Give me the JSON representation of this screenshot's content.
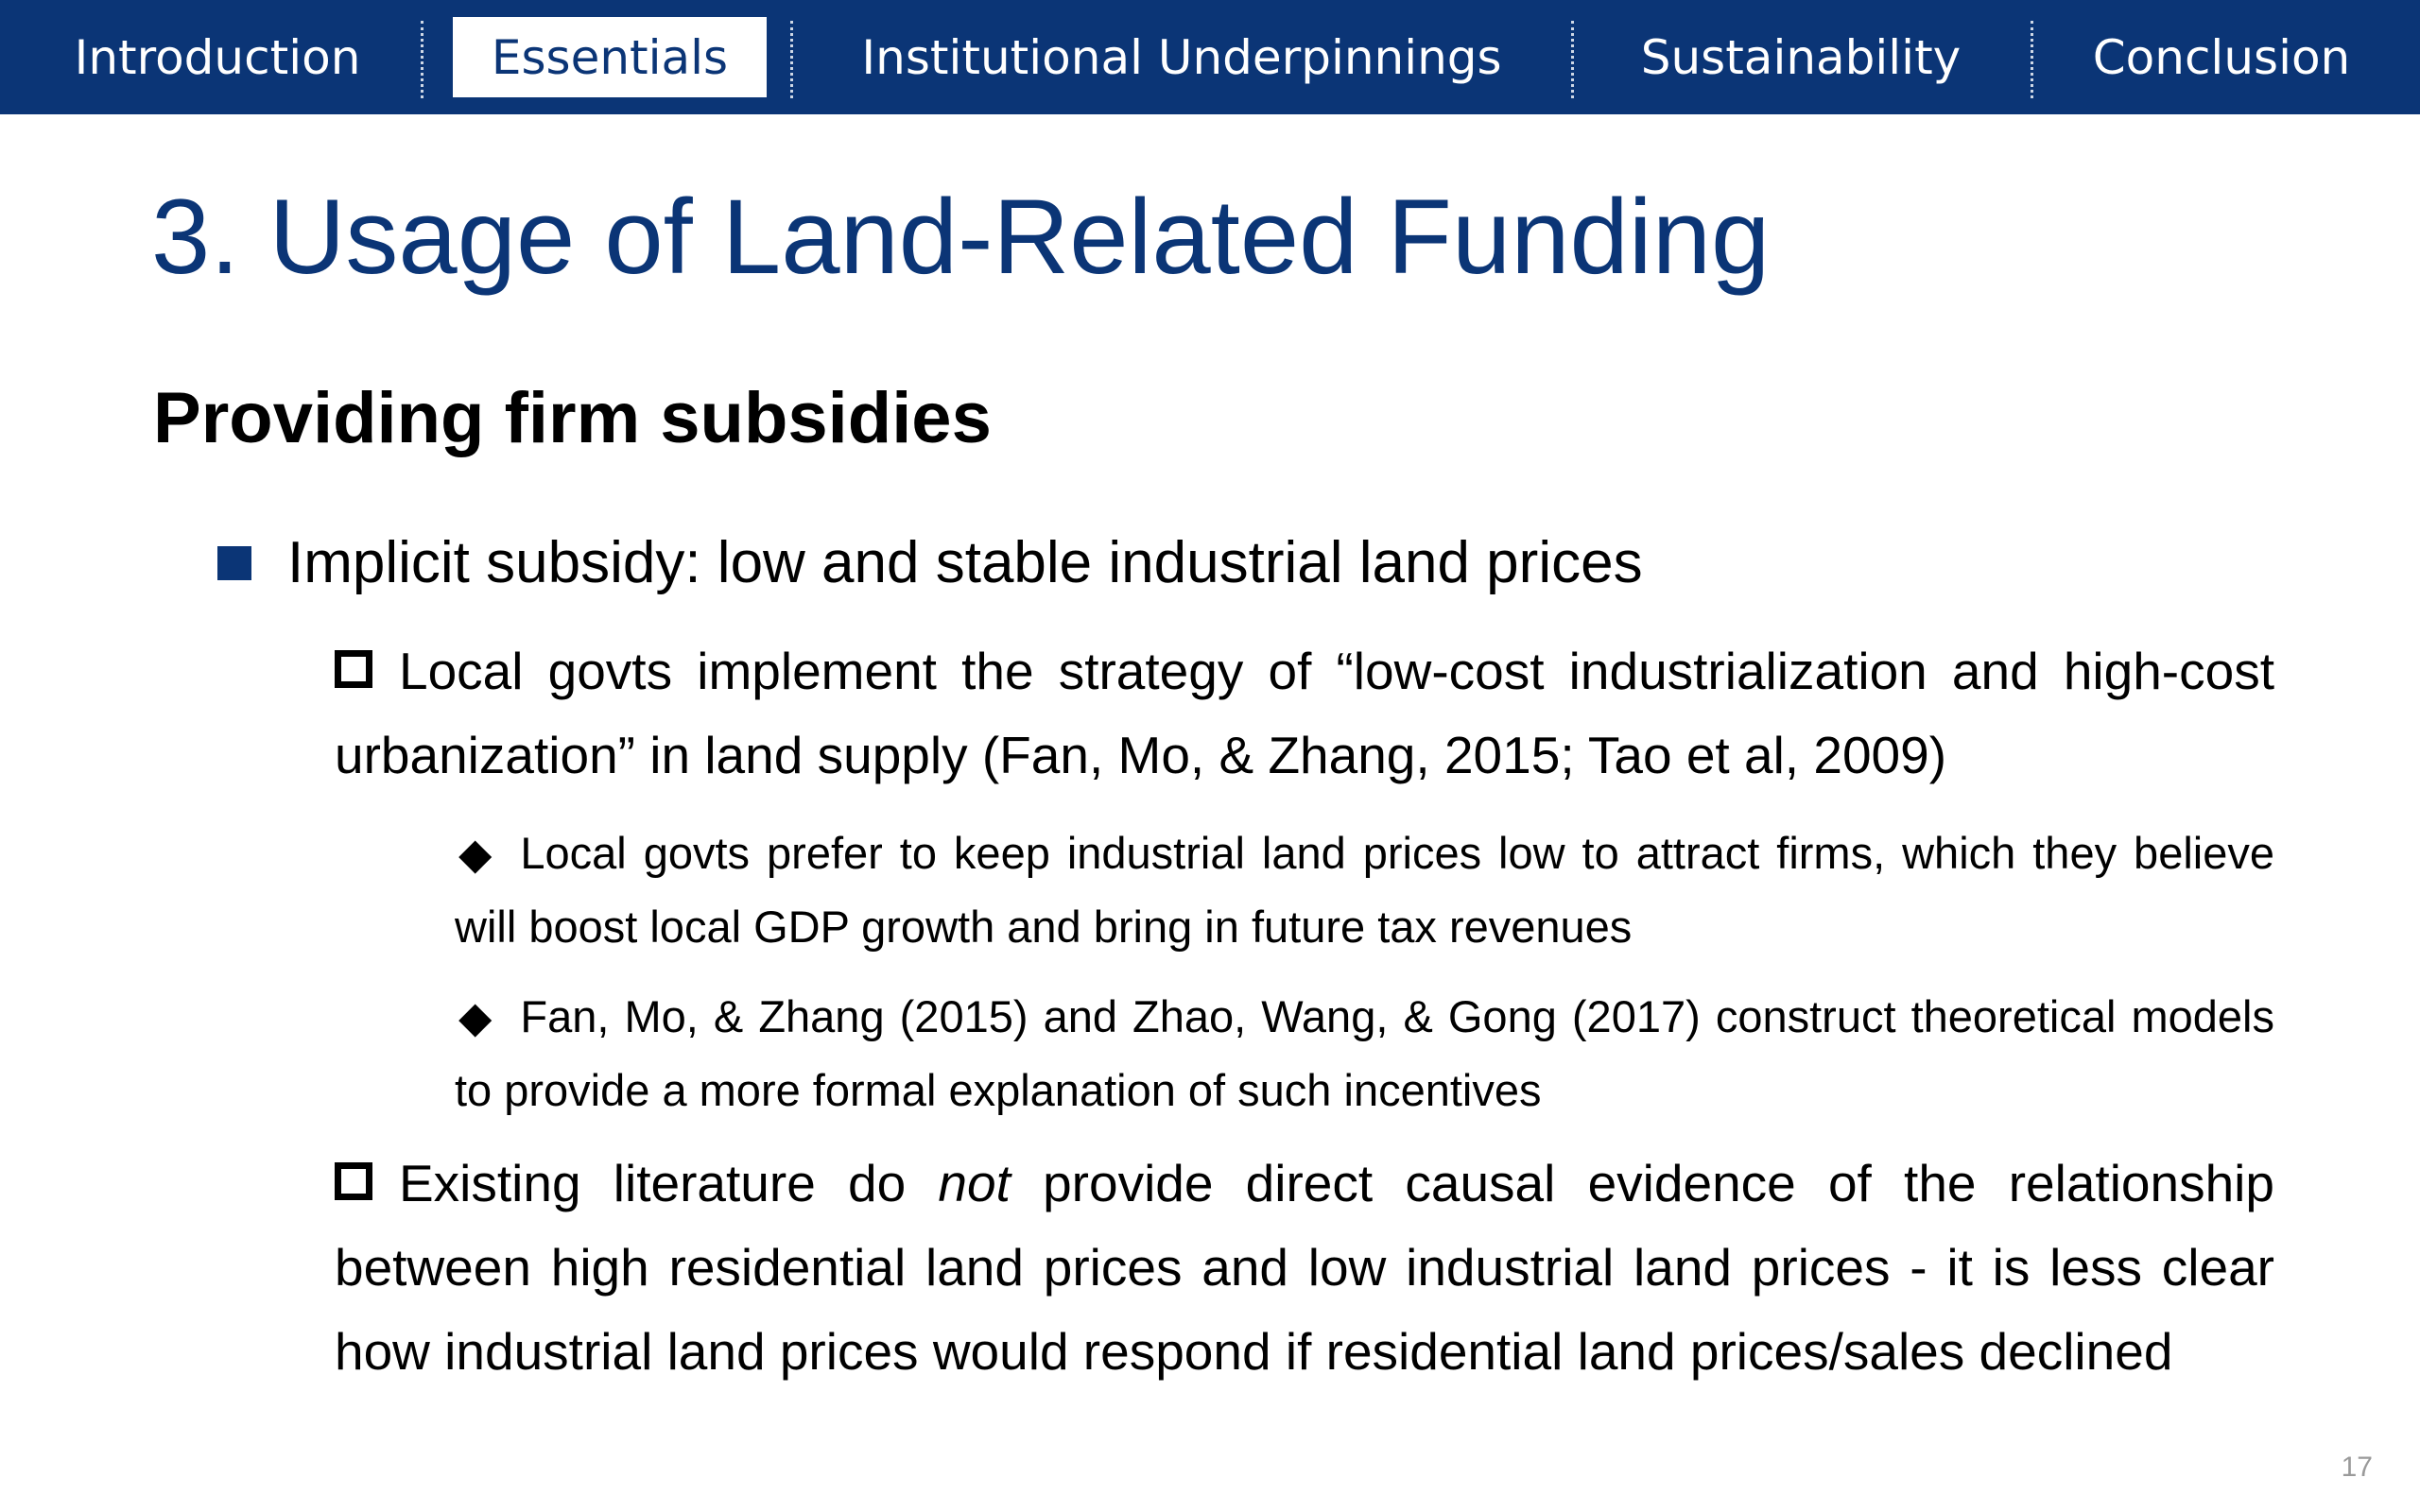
{
  "nav": {
    "tabs": [
      {
        "label": "Introduction"
      },
      {
        "label": "Essentials"
      },
      {
        "label": "Institutional Underpinnings"
      },
      {
        "label": "Sustainability"
      },
      {
        "label": "Conclusion"
      }
    ],
    "active_tab": "Essentials"
  },
  "colors": {
    "navbar_bg": "#0b3576",
    "title": "#0b3576",
    "bullet": "#0b3576"
  },
  "slide": {
    "title": "3. Usage of Land-Related Funding",
    "subtitle": "Providing firm subsidies",
    "bullet1": "Implicit subsidy: low and stable industrial land prices",
    "sub1": "Local govts implement the strategy of “low-cost industrialization and high-cost urbanization” in land supply (Fan, Mo, & Zhang, 2015; Tao et al, 2009)",
    "sub1_points": [
      "Local govts prefer to keep industrial land prices low to attract firms, which they believe will boost local GDP growth and bring in future tax revenues",
      "Fan, Mo, & Zhang (2015) and Zhao, Wang, & Gong (2017) construct theoretical models to provide a more formal explanation of such incentives"
    ],
    "sub2_pre": "Existing literature do ",
    "sub2_em": "not",
    "sub2_post": " provide direct causal evidence of the relationship between high residential land prices and low industrial land prices - it is less clear how industrial land prices would respond if residential land prices/sales declined",
    "page_number": "17"
  }
}
